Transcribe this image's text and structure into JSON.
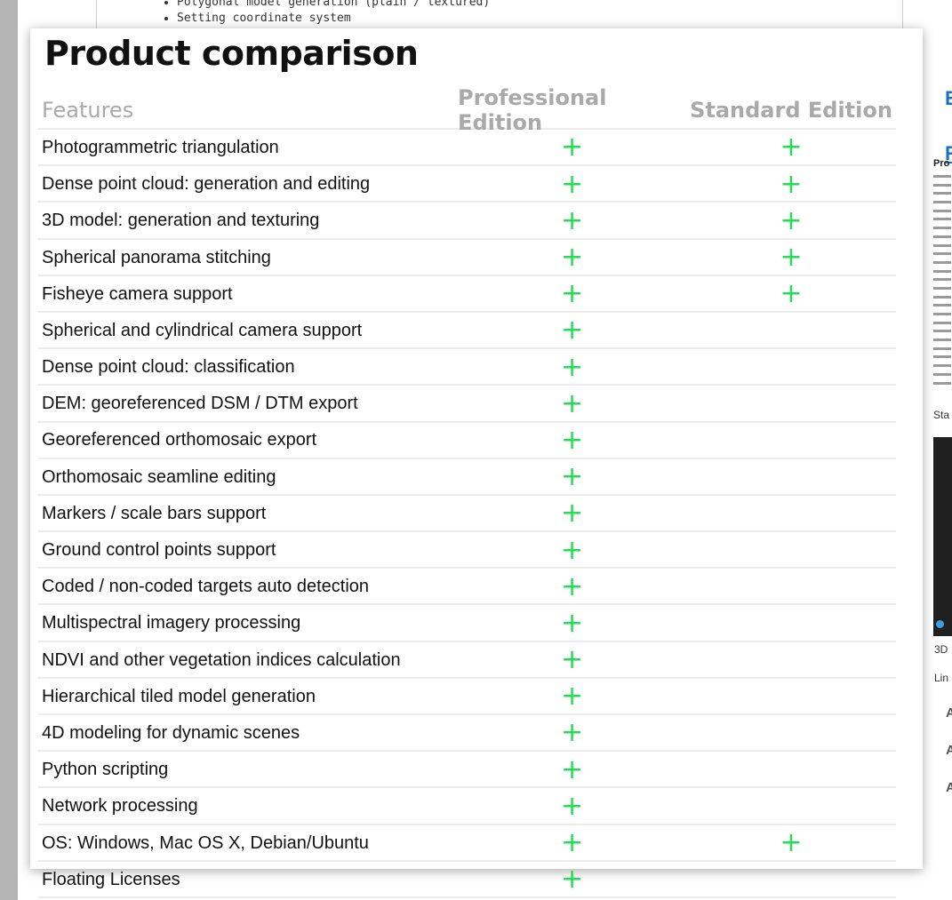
{
  "background": {
    "bullets": [
      "Polygonal model generation (plain / textured)",
      "Setting coordinate system"
    ]
  },
  "card": {
    "title": "Product comparison",
    "headers": {
      "feature": "Features",
      "pro": "Professional Edition",
      "std": "Standard Edition"
    },
    "check_symbol": "+",
    "check_color": "#22dd55",
    "rows": [
      {
        "feature": "Photogrammetric triangulation",
        "pro": true,
        "std": true
      },
      {
        "feature": "Dense point cloud: generation and editing",
        "pro": true,
        "std": true
      },
      {
        "feature": "3D model: generation and texturing",
        "pro": true,
        "std": true
      },
      {
        "feature": "Spherical panorama stitching",
        "pro": true,
        "std": true
      },
      {
        "feature": "Fisheye camera support",
        "pro": true,
        "std": true
      },
      {
        "feature": "Spherical and cylindrical camera support",
        "pro": true,
        "std": false
      },
      {
        "feature": "Dense point cloud: classification",
        "pro": true,
        "std": false
      },
      {
        "feature": "DEM: georeferenced DSM / DTM export",
        "pro": true,
        "std": false
      },
      {
        "feature": "Georeferenced orthomosaic export",
        "pro": true,
        "std": false
      },
      {
        "feature": "Orthomosaic seamline editing",
        "pro": true,
        "std": false
      },
      {
        "feature": "Markers / scale bars support",
        "pro": true,
        "std": false
      },
      {
        "feature": "Ground control points support",
        "pro": true,
        "std": false
      },
      {
        "feature": "Coded / non-coded targets auto detection",
        "pro": true,
        "std": false
      },
      {
        "feature": "Multispectral imagery processing",
        "pro": true,
        "std": false
      },
      {
        "feature": "NDVI and other vegetation indices calculation",
        "pro": true,
        "std": false
      },
      {
        "feature": "Hierarchical tiled model generation",
        "pro": true,
        "std": false
      },
      {
        "feature": "4D modeling for dynamic scenes",
        "pro": true,
        "std": false
      },
      {
        "feature": "Python scripting",
        "pro": true,
        "std": false
      },
      {
        "feature": "Network processing",
        "pro": true,
        "std": false
      },
      {
        "feature": "OS: Windows, Mac OS X, Debian/Ubuntu",
        "pro": true,
        "std": true
      },
      {
        "feature": "Floating Licenses",
        "pro": true,
        "std": false
      }
    ]
  },
  "right_strip": {
    "heading_b": "E",
    "heading_r": "R",
    "pro": "Pro",
    "sta": "Sta",
    "label_3d": "3D",
    "label_lin": "Lin",
    "a_labels": [
      "A",
      "A",
      "A"
    ]
  }
}
